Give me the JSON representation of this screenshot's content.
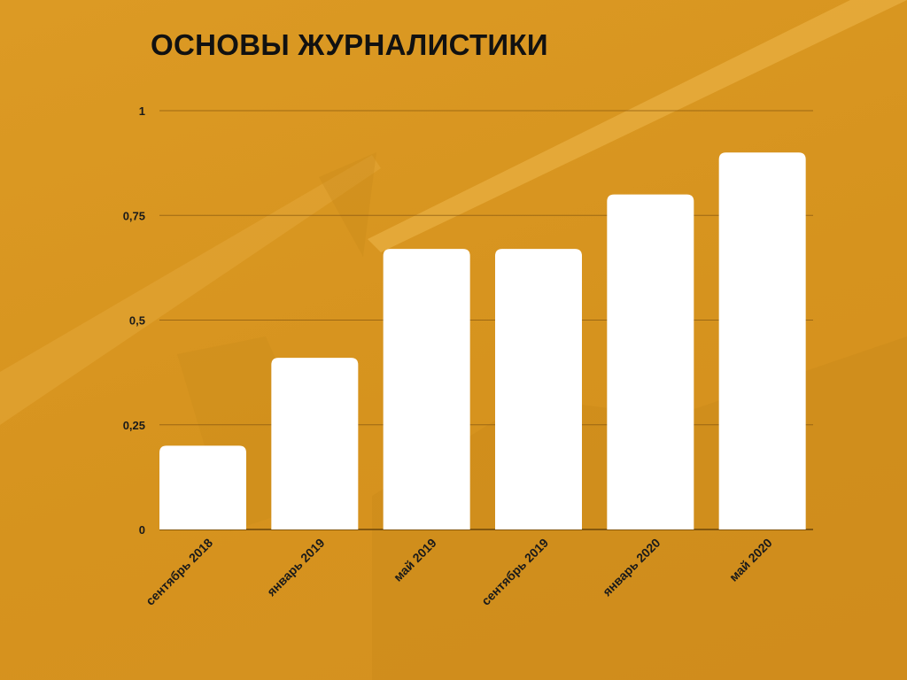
{
  "title": "ОСНОВЫ ЖУРНАЛИСТИКИ",
  "chart_data": {
    "type": "bar",
    "title": "ОСНОВЫ ЖУРНАЛИСТИКИ",
    "categories": [
      "сентябрь 2018",
      "январь 2019",
      "май 2019",
      "сентябрь 2019",
      "январь 2020",
      "май 2020"
    ],
    "values": [
      0.2,
      0.41,
      0.67,
      0.67,
      0.8,
      0.9
    ],
    "ylim": [
      0,
      1
    ],
    "yticks": [
      0,
      0.25,
      0.5,
      0.75,
      1
    ],
    "ytick_labels": [
      "0",
      "0,25",
      "0,5",
      "0,75",
      "1"
    ],
    "xlabel": "",
    "ylabel": "",
    "grid": true,
    "legend": "none",
    "colors": {
      "bar": "#ffffff",
      "grid": "#8a5a10",
      "background": "#d8951f",
      "text": "#1a1a1a"
    }
  }
}
